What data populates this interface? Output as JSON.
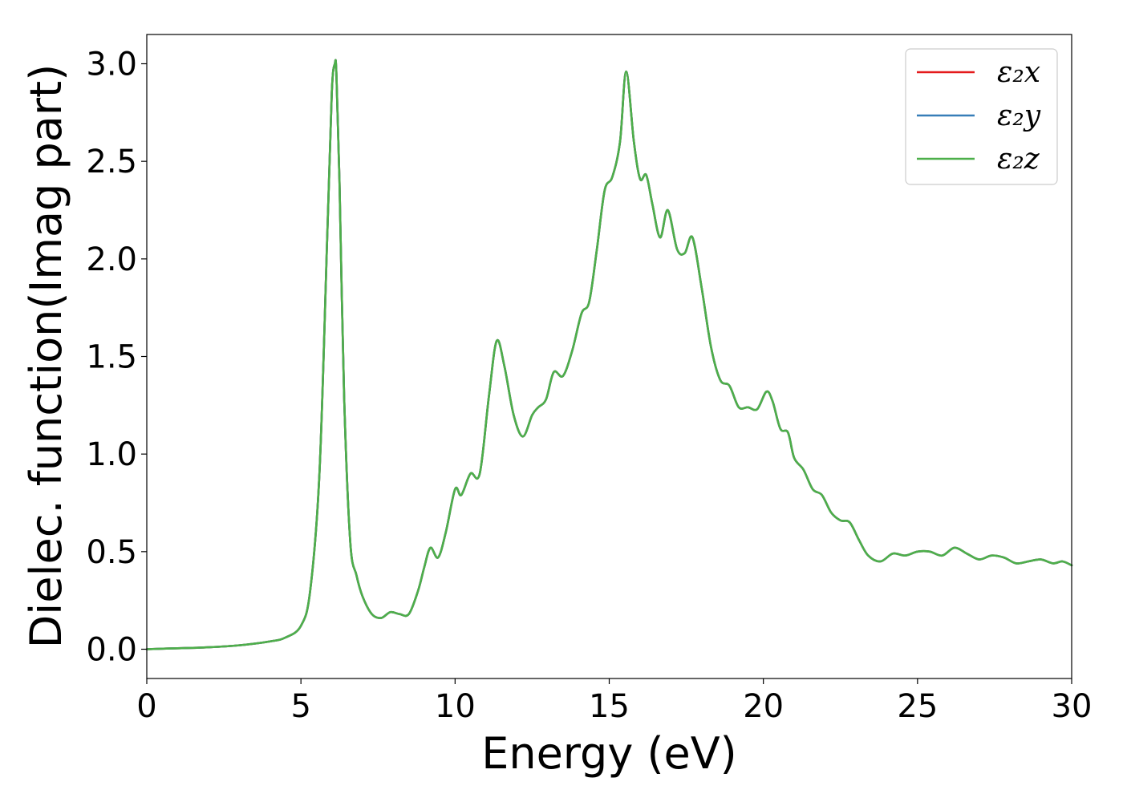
{
  "chart_data": {
    "type": "line",
    "xlabel": "Energy (eV)",
    "ylabel": "Dielec. function(Imag part)",
    "xlim": [
      0,
      30
    ],
    "ylim": [
      -0.15,
      3.15
    ],
    "xticks": [
      0,
      5,
      10,
      15,
      20,
      25,
      30
    ],
    "yticks": [
      0.0,
      0.5,
      1.0,
      1.5,
      2.0,
      2.5,
      3.0
    ],
    "xtick_labels": [
      "0",
      "5",
      "10",
      "15",
      "20",
      "25",
      "30"
    ],
    "ytick_labels": [
      "0.0",
      "0.5",
      "1.0",
      "1.5",
      "2.0",
      "2.5",
      "3.0"
    ],
    "grid": false,
    "legend_position": "top-right",
    "series": [
      {
        "name": "ε₂x",
        "color": "#e41a1c"
      },
      {
        "name": "ε₂y",
        "color": "#377eb8"
      },
      {
        "name": "ε₂z",
        "color": "#4daf4a"
      }
    ],
    "x": [
      0,
      1,
      2,
      3,
      4,
      4.5,
      5,
      5.3,
      5.6,
      5.85,
      6.0,
      6.1,
      6.15,
      6.25,
      6.4,
      6.6,
      6.8,
      7.0,
      7.3,
      7.6,
      7.9,
      8.2,
      8.5,
      8.8,
      9.0,
      9.2,
      9.45,
      9.7,
      10.0,
      10.2,
      10.5,
      10.8,
      11.1,
      11.35,
      11.6,
      11.9,
      12.2,
      12.5,
      12.7,
      12.95,
      13.2,
      13.5,
      13.8,
      14.1,
      14.35,
      14.6,
      14.85,
      15.1,
      15.35,
      15.55,
      15.8,
      16.0,
      16.2,
      16.4,
      16.65,
      16.9,
      17.2,
      17.45,
      17.7,
      18.0,
      18.3,
      18.6,
      18.9,
      19.2,
      19.5,
      19.8,
      20.1,
      20.3,
      20.55,
      20.8,
      21.0,
      21.3,
      21.6,
      21.9,
      22.2,
      22.5,
      22.8,
      23.1,
      23.4,
      23.8,
      24.2,
      24.6,
      25.0,
      25.4,
      25.8,
      26.2,
      26.6,
      27.0,
      27.4,
      27.8,
      28.2,
      28.6,
      29.0,
      29.4,
      29.7,
      30.0
    ],
    "values": [
      0.0,
      0.005,
      0.01,
      0.02,
      0.04,
      0.06,
      0.12,
      0.3,
      0.9,
      2.1,
      2.85,
      3.0,
      2.95,
      2.4,
      1.3,
      0.55,
      0.38,
      0.27,
      0.18,
      0.16,
      0.19,
      0.18,
      0.18,
      0.3,
      0.42,
      0.52,
      0.47,
      0.6,
      0.82,
      0.79,
      0.9,
      0.9,
      1.3,
      1.58,
      1.45,
      1.2,
      1.09,
      1.2,
      1.24,
      1.28,
      1.42,
      1.4,
      1.53,
      1.72,
      1.78,
      2.05,
      2.35,
      2.42,
      2.6,
      2.96,
      2.6,
      2.41,
      2.43,
      2.28,
      2.11,
      2.25,
      2.05,
      2.03,
      2.11,
      1.85,
      1.55,
      1.38,
      1.35,
      1.24,
      1.24,
      1.23,
      1.32,
      1.27,
      1.13,
      1.11,
      0.98,
      0.92,
      0.82,
      0.79,
      0.7,
      0.66,
      0.65,
      0.56,
      0.48,
      0.45,
      0.49,
      0.48,
      0.5,
      0.5,
      0.48,
      0.52,
      0.49,
      0.46,
      0.48,
      0.47,
      0.44,
      0.45,
      0.46,
      0.44,
      0.45,
      0.43
    ]
  }
}
